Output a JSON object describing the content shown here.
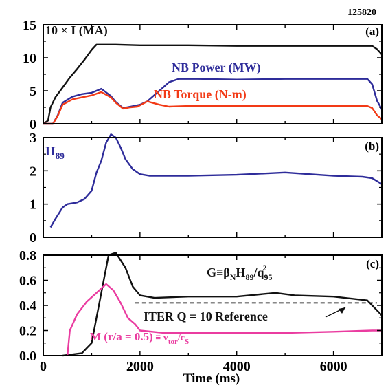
{
  "figure": {
    "shot_number": "125820",
    "xlabel": "Time (ms)"
  },
  "colors": {
    "black": "#111111",
    "blue": "#2e2c9a",
    "red": "#f23a16",
    "magenta": "#ea3ca0",
    "axis": "#000000"
  },
  "chart_data": [
    {
      "type": "line",
      "panel_label": "(a)",
      "xlim": [
        0,
        7000
      ],
      "ylim": [
        0,
        15
      ],
      "yticks": [
        0,
        5,
        10,
        15
      ],
      "xticks": [
        0,
        2000,
        4000,
        6000
      ],
      "series": [
        {
          "name": "10 × I (MA)",
          "color": "black",
          "points": [
            [
              0,
              0
            ],
            [
              100,
              0.5
            ],
            [
              150,
              2.5
            ],
            [
              250,
              4
            ],
            [
              400,
              5.5
            ],
            [
              550,
              7
            ],
            [
              700,
              8.3
            ],
            [
              850,
              9.7
            ],
            [
              1000,
              11.2
            ],
            [
              1100,
              12
            ],
            [
              1500,
              12
            ],
            [
              2000,
              11.9
            ],
            [
              3000,
              11.9
            ],
            [
              4000,
              11.8
            ],
            [
              5000,
              11.8
            ],
            [
              6000,
              11.8
            ],
            [
              6800,
              11.8
            ],
            [
              6900,
              11.3
            ],
            [
              7000,
              10.5
            ]
          ]
        },
        {
          "name": "NB Power (MW)",
          "color": "blue",
          "points": [
            [
              0,
              0
            ],
            [
              200,
              0
            ],
            [
              300,
              1.3
            ],
            [
              400,
              3.2
            ],
            [
              600,
              4.1
            ],
            [
              800,
              4.5
            ],
            [
              1000,
              4.7
            ],
            [
              1200,
              5.3
            ],
            [
              1400,
              4.2
            ],
            [
              1500,
              3.3
            ],
            [
              1650,
              2.4
            ],
            [
              1800,
              2.6
            ],
            [
              2000,
              2.9
            ],
            [
              2150,
              3.4
            ],
            [
              2400,
              5
            ],
            [
              2600,
              6.3
            ],
            [
              2800,
              6.8
            ],
            [
              3200,
              6.8
            ],
            [
              4000,
              6.7
            ],
            [
              5000,
              6.8
            ],
            [
              6000,
              6.8
            ],
            [
              6700,
              6.8
            ],
            [
              6800,
              6
            ],
            [
              6900,
              3.5
            ],
            [
              7000,
              2.2
            ]
          ]
        },
        {
          "name": "NB Torque (N-m)",
          "color": "red",
          "points": [
            [
              0,
              0
            ],
            [
              200,
              0
            ],
            [
              300,
              1.2
            ],
            [
              400,
              2.9
            ],
            [
              600,
              3.7
            ],
            [
              800,
              4
            ],
            [
              1000,
              4.3
            ],
            [
              1200,
              4.8
            ],
            [
              1400,
              4
            ],
            [
              1500,
              3.2
            ],
            [
              1650,
              2.3
            ],
            [
              1800,
              2.5
            ],
            [
              1950,
              2.6
            ],
            [
              2150,
              3.4
            ],
            [
              2400,
              2.9
            ],
            [
              2600,
              2.6
            ],
            [
              3000,
              2.7
            ],
            [
              4000,
              2.7
            ],
            [
              5000,
              2.7
            ],
            [
              6000,
              2.7
            ],
            [
              6700,
              2.7
            ],
            [
              6800,
              2.4
            ],
            [
              6900,
              1.3
            ],
            [
              7000,
              0.7
            ]
          ]
        }
      ]
    },
    {
      "type": "line",
      "panel_label": "(b)",
      "xlim": [
        0,
        7000
      ],
      "ylim": [
        0,
        3
      ],
      "yticks": [
        0,
        1,
        2,
        3
      ],
      "xticks": [
        0,
        2000,
        4000,
        6000
      ],
      "series": [
        {
          "name": "H89",
          "color": "blue",
          "points": [
            [
              150,
              0.3
            ],
            [
              250,
              0.55
            ],
            [
              400,
              0.9
            ],
            [
              500,
              1
            ],
            [
              700,
              1.05
            ],
            [
              850,
              1.15
            ],
            [
              1000,
              1.4
            ],
            [
              1100,
              1.95
            ],
            [
              1200,
              2.3
            ],
            [
              1300,
              2.85
            ],
            [
              1400,
              3.1
            ],
            [
              1500,
              3
            ],
            [
              1600,
              2.7
            ],
            [
              1700,
              2.35
            ],
            [
              1850,
              2.05
            ],
            [
              2000,
              1.9
            ],
            [
              2200,
              1.85
            ],
            [
              3000,
              1.85
            ],
            [
              4000,
              1.88
            ],
            [
              5000,
              1.95
            ],
            [
              6000,
              1.85
            ],
            [
              6600,
              1.82
            ],
            [
              6800,
              1.78
            ],
            [
              7000,
              1.6
            ]
          ]
        }
      ]
    },
    {
      "type": "line",
      "panel_label": "(c)",
      "xlim": [
        0,
        7000
      ],
      "ylim": [
        0,
        0.8
      ],
      "yticks": [
        0,
        0.2,
        0.4,
        0.6,
        0.8
      ],
      "ytick_labels": [
        "0.0",
        "0.2",
        "0.4",
        "0.6",
        "0.8"
      ],
      "xticks": [
        0,
        2000,
        4000,
        6000
      ],
      "series": [
        {
          "name": "G",
          "color": "black",
          "points": [
            [
              400,
              0
            ],
            [
              800,
              0.02
            ],
            [
              1000,
              0.1
            ],
            [
              1200,
              0.5
            ],
            [
              1350,
              0.8
            ],
            [
              1500,
              0.82
            ],
            [
              1700,
              0.7
            ],
            [
              1850,
              0.55
            ],
            [
              2000,
              0.48
            ],
            [
              2300,
              0.46
            ],
            [
              3000,
              0.47
            ],
            [
              4000,
              0.47
            ],
            [
              4800,
              0.5
            ],
            [
              5200,
              0.48
            ],
            [
              6000,
              0.47
            ],
            [
              6700,
              0.44
            ],
            [
              6850,
              0.38
            ],
            [
              7000,
              0.32
            ]
          ]
        },
        {
          "name": "M (r/a = 0.5)",
          "color": "magenta",
          "points": [
            [
              500,
              0
            ],
            [
              550,
              0.2
            ],
            [
              700,
              0.33
            ],
            [
              900,
              0.43
            ],
            [
              1100,
              0.5
            ],
            [
              1300,
              0.57
            ],
            [
              1450,
              0.52
            ],
            [
              1600,
              0.42
            ],
            [
              1750,
              0.3
            ],
            [
              1900,
              0.25
            ],
            [
              2000,
              0.2
            ],
            [
              2500,
              0.18
            ],
            [
              4000,
              0.18
            ],
            [
              5000,
              0.18
            ],
            [
              6000,
              0.19
            ],
            [
              6800,
              0.2
            ],
            [
              7000,
              0.2
            ]
          ]
        },
        {
          "name": "ITER Q = 10 Reference",
          "color": "black",
          "dashed": true,
          "points": [
            [
              1900,
              0.42
            ],
            [
              6900,
              0.42
            ]
          ]
        }
      ]
    }
  ],
  "labels": {
    "a_current": "10 × I (MA)",
    "a_power": "NB Power (MW)",
    "a_torque": "NB Torque (N-m)",
    "b_h89_main": "H",
    "b_h89_sub": "89",
    "c_G": "G≡β",
    "c_G_sub1": "N",
    "c_G_mid": "H",
    "c_G_sub2": "89",
    "c_G_tail": "/q",
    "c_G_sub3": "95",
    "c_G_sup": "2",
    "c_iter": "ITER Q = 10 Reference",
    "c_M": "M (r/a = 0.5)",
    "c_M_tail": " ≡ v",
    "c_M_sub1": "tor",
    "c_M_slash": "/c",
    "c_M_sub2": "S"
  }
}
